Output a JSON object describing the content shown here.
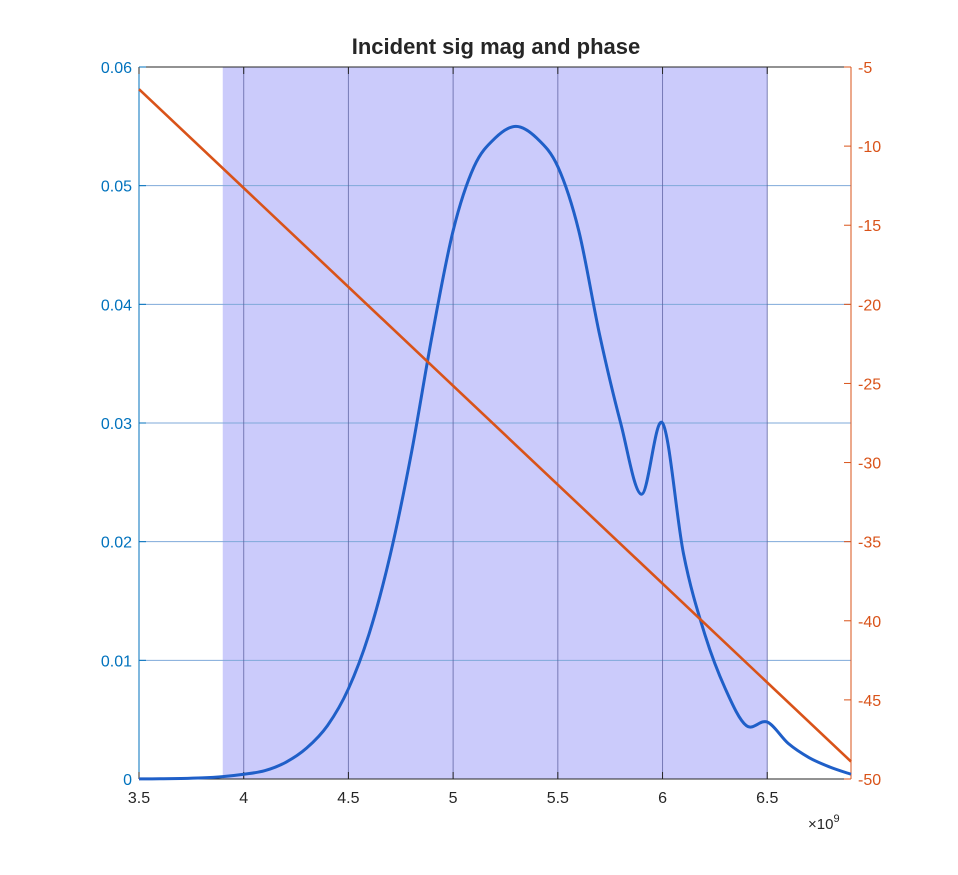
{
  "chart_data": {
    "type": "line",
    "title": "Incident sig mag and phase",
    "x_exponent_label": "×10",
    "x_exponent_power": "9",
    "xlim": [
      3500000000.0,
      6900000000.0
    ],
    "x_ticks": [
      3500000000.0,
      4000000000.0,
      4500000000.0,
      5000000000.0,
      5500000000.0,
      6000000000.0,
      6500000000.0
    ],
    "x_tick_labels": [
      "3.5",
      "4",
      "4.5",
      "5",
      "5.5",
      "6",
      "6.5"
    ],
    "left_axis": {
      "ylim": [
        0,
        0.06
      ],
      "ticks": [
        0,
        0.01,
        0.02,
        0.03,
        0.04,
        0.05,
        0.06
      ],
      "tick_labels": [
        "0",
        "0.01",
        "0.02",
        "0.03",
        "0.04",
        "0.05",
        "0.06"
      ],
      "color": "#0072BD"
    },
    "right_axis": {
      "ylim": [
        -50,
        -5
      ],
      "ticks": [
        -50,
        -45,
        -40,
        -35,
        -30,
        -25,
        -20,
        -15,
        -10,
        -5
      ],
      "tick_labels": [
        "-50",
        "-45",
        "-40",
        "-35",
        "-30",
        "-25",
        "-20",
        "-15",
        "-10",
        "-5"
      ],
      "color": "#D95319"
    },
    "band": {
      "x_start": 3900000000.0,
      "x_end": 6500000000.0,
      "color": "#CBCBFB"
    },
    "grid": true,
    "series": [
      {
        "axis": "left",
        "color": "#1F5FC8",
        "x": [
          3500000000.0,
          3600000000.0,
          3700000000.0,
          3800000000.0,
          3900000000.0,
          4000000000.0,
          4100000000.0,
          4200000000.0,
          4300000000.0,
          4400000000.0,
          4500000000.0,
          4600000000.0,
          4700000000.0,
          4800000000.0,
          4900000000.0,
          5000000000.0,
          5100000000.0,
          5200000000.0,
          5300000000.0,
          5400000000.0,
          5500000000.0,
          5600000000.0,
          5700000000.0,
          5800000000.0,
          5900000000.0,
          6000000000.0,
          6100000000.0,
          6200000000.0,
          6300000000.0,
          6400000000.0,
          6500000000.0,
          6600000000.0,
          6700000000.0,
          6800000000.0,
          6900000000.0
        ],
        "values": [
          1e-05,
          2e-05,
          4e-05,
          9e-05,
          0.0002,
          0.0004,
          0.0007,
          0.0014,
          0.0026,
          0.0045,
          0.0076,
          0.0123,
          0.0189,
          0.0274,
          0.0374,
          0.0462,
          0.0516,
          0.054,
          0.055,
          0.054,
          0.0516,
          0.0462,
          0.0374,
          0.03,
          0.024,
          0.03,
          0.019,
          0.0123,
          0.0076,
          0.0045,
          0.0048,
          0.003,
          0.0018,
          0.001,
          0.0004
        ]
      },
      {
        "axis": "right",
        "color": "#D95319",
        "x": [
          3500000000.0,
          6900000000.0
        ],
        "values": [
          -6.4,
          -48.9
        ]
      }
    ]
  }
}
